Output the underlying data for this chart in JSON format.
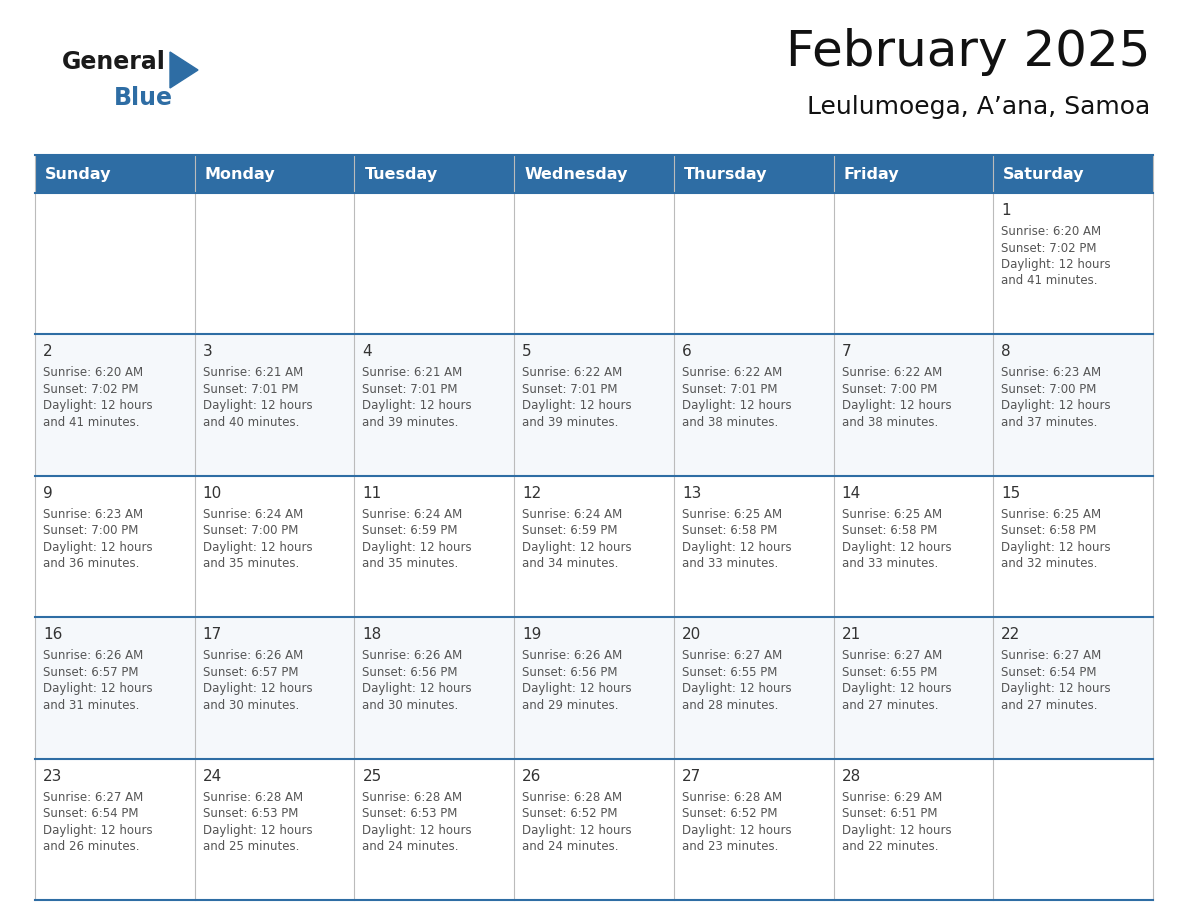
{
  "title": "February 2025",
  "subtitle": "Leulumoega, A’ana, Samoa",
  "header_bg_color": "#2E6DA4",
  "header_text_color": "#FFFFFF",
  "days_of_week": [
    "Sunday",
    "Monday",
    "Tuesday",
    "Wednesday",
    "Thursday",
    "Friday",
    "Saturday"
  ],
  "border_color": "#2E6DA4",
  "row_line_color": "#2E6DA4",
  "col_line_color": "#CCCCCC",
  "text_color": "#555555",
  "day_num_color": "#333333",
  "calendar": [
    [
      null,
      null,
      null,
      null,
      null,
      null,
      {
        "day": 1,
        "sunrise": "6:20 AM",
        "sunset": "7:02 PM",
        "daylight": "12 hours\nand 41 minutes."
      }
    ],
    [
      {
        "day": 2,
        "sunrise": "6:20 AM",
        "sunset": "7:02 PM",
        "daylight": "12 hours\nand 41 minutes."
      },
      {
        "day": 3,
        "sunrise": "6:21 AM",
        "sunset": "7:01 PM",
        "daylight": "12 hours\nand 40 minutes."
      },
      {
        "day": 4,
        "sunrise": "6:21 AM",
        "sunset": "7:01 PM",
        "daylight": "12 hours\nand 39 minutes."
      },
      {
        "day": 5,
        "sunrise": "6:22 AM",
        "sunset": "7:01 PM",
        "daylight": "12 hours\nand 39 minutes."
      },
      {
        "day": 6,
        "sunrise": "6:22 AM",
        "sunset": "7:01 PM",
        "daylight": "12 hours\nand 38 minutes."
      },
      {
        "day": 7,
        "sunrise": "6:22 AM",
        "sunset": "7:00 PM",
        "daylight": "12 hours\nand 38 minutes."
      },
      {
        "day": 8,
        "sunrise": "6:23 AM",
        "sunset": "7:00 PM",
        "daylight": "12 hours\nand 37 minutes."
      }
    ],
    [
      {
        "day": 9,
        "sunrise": "6:23 AM",
        "sunset": "7:00 PM",
        "daylight": "12 hours\nand 36 minutes."
      },
      {
        "day": 10,
        "sunrise": "6:24 AM",
        "sunset": "7:00 PM",
        "daylight": "12 hours\nand 35 minutes."
      },
      {
        "day": 11,
        "sunrise": "6:24 AM",
        "sunset": "6:59 PM",
        "daylight": "12 hours\nand 35 minutes."
      },
      {
        "day": 12,
        "sunrise": "6:24 AM",
        "sunset": "6:59 PM",
        "daylight": "12 hours\nand 34 minutes."
      },
      {
        "day": 13,
        "sunrise": "6:25 AM",
        "sunset": "6:58 PM",
        "daylight": "12 hours\nand 33 minutes."
      },
      {
        "day": 14,
        "sunrise": "6:25 AM",
        "sunset": "6:58 PM",
        "daylight": "12 hours\nand 33 minutes."
      },
      {
        "day": 15,
        "sunrise": "6:25 AM",
        "sunset": "6:58 PM",
        "daylight": "12 hours\nand 32 minutes."
      }
    ],
    [
      {
        "day": 16,
        "sunrise": "6:26 AM",
        "sunset": "6:57 PM",
        "daylight": "12 hours\nand 31 minutes."
      },
      {
        "day": 17,
        "sunrise": "6:26 AM",
        "sunset": "6:57 PM",
        "daylight": "12 hours\nand 30 minutes."
      },
      {
        "day": 18,
        "sunrise": "6:26 AM",
        "sunset": "6:56 PM",
        "daylight": "12 hours\nand 30 minutes."
      },
      {
        "day": 19,
        "sunrise": "6:26 AM",
        "sunset": "6:56 PM",
        "daylight": "12 hours\nand 29 minutes."
      },
      {
        "day": 20,
        "sunrise": "6:27 AM",
        "sunset": "6:55 PM",
        "daylight": "12 hours\nand 28 minutes."
      },
      {
        "day": 21,
        "sunrise": "6:27 AM",
        "sunset": "6:55 PM",
        "daylight": "12 hours\nand 27 minutes."
      },
      {
        "day": 22,
        "sunrise": "6:27 AM",
        "sunset": "6:54 PM",
        "daylight": "12 hours\nand 27 minutes."
      }
    ],
    [
      {
        "day": 23,
        "sunrise": "6:27 AM",
        "sunset": "6:54 PM",
        "daylight": "12 hours\nand 26 minutes."
      },
      {
        "day": 24,
        "sunrise": "6:28 AM",
        "sunset": "6:53 PM",
        "daylight": "12 hours\nand 25 minutes."
      },
      {
        "day": 25,
        "sunrise": "6:28 AM",
        "sunset": "6:53 PM",
        "daylight": "12 hours\nand 24 minutes."
      },
      {
        "day": 26,
        "sunrise": "6:28 AM",
        "sunset": "6:52 PM",
        "daylight": "12 hours\nand 24 minutes."
      },
      {
        "day": 27,
        "sunrise": "6:28 AM",
        "sunset": "6:52 PM",
        "daylight": "12 hours\nand 23 minutes."
      },
      {
        "day": 28,
        "sunrise": "6:29 AM",
        "sunset": "6:51 PM",
        "daylight": "12 hours\nand 22 minutes."
      },
      null
    ]
  ],
  "fig_width": 11.88,
  "fig_height": 9.18,
  "dpi": 100
}
